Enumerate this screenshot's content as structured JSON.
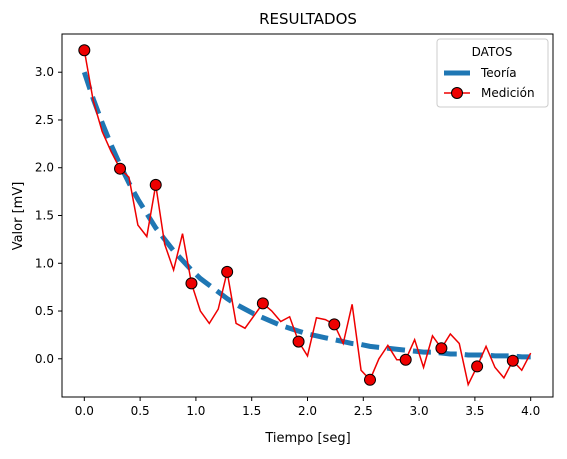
{
  "chart_data": {
    "type": "line",
    "title": "RESULTADOS",
    "xlabel": "Tiempo [seg]",
    "ylabel": "Valor [mV]",
    "xlim": [
      -0.2,
      4.2
    ],
    "ylim": [
      -0.4,
      3.4
    ],
    "xticks": [
      0.0,
      0.5,
      1.0,
      1.5,
      2.0,
      2.5,
      3.0,
      3.5,
      4.0
    ],
    "xtick_labels": [
      "0.0",
      "0.5",
      "1.0",
      "1.5",
      "2.0",
      "2.5",
      "3.0",
      "3.5",
      "4.0"
    ],
    "yticks": [
      0.0,
      0.5,
      1.0,
      1.5,
      2.0,
      2.5,
      3.0
    ],
    "ytick_labels": [
      "0.0",
      "0.5",
      "1.0",
      "1.5",
      "2.0",
      "2.5",
      "3.0"
    ],
    "grid": false,
    "legend": {
      "title": "DATOS",
      "position": "top-right"
    },
    "series": [
      {
        "name": "Teoría",
        "style": "dashed",
        "color": "#1f77b4",
        "x": [
          0.0,
          0.08,
          0.16,
          0.24,
          0.32,
          0.4,
          0.48,
          0.56,
          0.64,
          0.72,
          0.8,
          0.88,
          0.96,
          1.04,
          1.12,
          1.2,
          1.28,
          1.36,
          1.44,
          1.52,
          1.6,
          1.68,
          1.76,
          1.84,
          1.92,
          2.0,
          2.08,
          2.16,
          2.24,
          2.32,
          2.4,
          2.48,
          2.56,
          2.64,
          2.72,
          2.8,
          2.88,
          2.96,
          3.04,
          3.12,
          3.2,
          3.28,
          3.36,
          3.44,
          3.52,
          3.6,
          3.68,
          3.76,
          3.84,
          3.92,
          4.0
        ],
        "values": [
          3.0,
          2.72,
          2.47,
          2.24,
          2.03,
          1.84,
          1.67,
          1.52,
          1.37,
          1.25,
          1.13,
          1.03,
          0.93,
          0.84,
          0.77,
          0.7,
          0.63,
          0.57,
          0.52,
          0.47,
          0.43,
          0.39,
          0.35,
          0.32,
          0.29,
          0.26,
          0.24,
          0.22,
          0.2,
          0.18,
          0.16,
          0.15,
          0.13,
          0.12,
          0.11,
          0.1,
          0.09,
          0.08,
          0.07,
          0.07,
          0.06,
          0.05,
          0.05,
          0.04,
          0.04,
          0.04,
          0.03,
          0.03,
          0.03,
          0.02,
          0.02
        ]
      },
      {
        "name": "Medición",
        "style": "solid",
        "color": "#ee0000",
        "marker_face": "#ee0000",
        "marker_edge": "#000000",
        "x": [
          0.0,
          0.08,
          0.16,
          0.24,
          0.32,
          0.4,
          0.48,
          0.56,
          0.64,
          0.72,
          0.8,
          0.88,
          0.96,
          1.04,
          1.12,
          1.2,
          1.28,
          1.36,
          1.44,
          1.52,
          1.6,
          1.68,
          1.76,
          1.84,
          1.92,
          2.0,
          2.08,
          2.16,
          2.24,
          2.32,
          2.4,
          2.48,
          2.56,
          2.64,
          2.72,
          2.8,
          2.88,
          2.96,
          3.04,
          3.12,
          3.2,
          3.28,
          3.36,
          3.44,
          3.52,
          3.6,
          3.68,
          3.76,
          3.84,
          3.92,
          4.0
        ],
        "values": [
          3.23,
          2.7,
          2.38,
          2.17,
          1.99,
          1.9,
          1.4,
          1.28,
          1.82,
          1.2,
          0.93,
          1.31,
          0.79,
          0.5,
          0.37,
          0.52,
          0.91,
          0.37,
          0.32,
          0.45,
          0.58,
          0.5,
          0.39,
          0.44,
          0.18,
          0.03,
          0.43,
          0.41,
          0.36,
          0.16,
          0.57,
          -0.12,
          -0.22,
          0.0,
          0.14,
          -0.01,
          -0.01,
          0.2,
          -0.09,
          0.24,
          0.11,
          0.26,
          0.16,
          -0.27,
          -0.08,
          0.13,
          -0.09,
          -0.2,
          -0.02,
          -0.12,
          0.06
        ],
        "marker_indices": [
          0,
          4,
          8,
          12,
          16,
          20,
          24,
          28,
          32,
          36,
          40,
          44,
          48
        ]
      }
    ]
  }
}
